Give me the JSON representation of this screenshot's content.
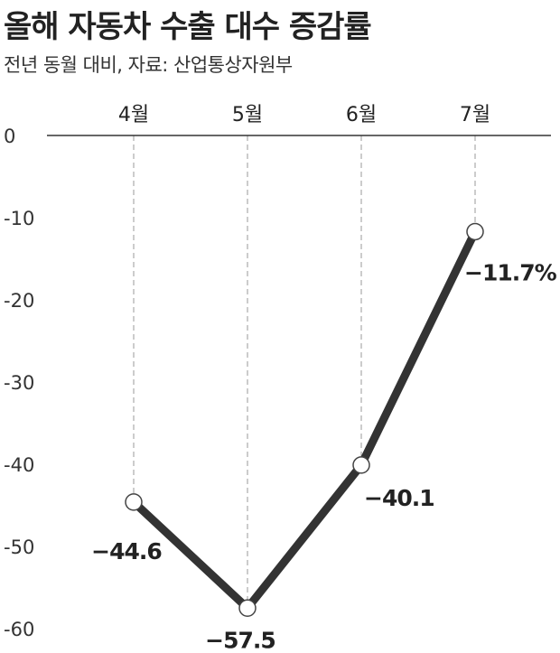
{
  "header": {
    "title": "올해 자동차 수출 대수 증감률",
    "subtitle": "전년 동월 대비, 자료: 산업통상자원부"
  },
  "chart_data": {
    "type": "line",
    "title": "올해 자동차 수출 대수 증감률",
    "subtitle": "전년 동월 대비, 자료: 산업통상자원부",
    "categories": [
      "4월",
      "5월",
      "6월",
      "7월"
    ],
    "series": [
      {
        "values": [
          -44.6,
          -57.5,
          -40.1,
          -11.7
        ]
      }
    ],
    "data_labels": [
      "−44.6",
      "−57.5",
      "−40.1",
      "−11.7%"
    ],
    "yticks": [
      0,
      -10,
      -20,
      -30,
      -40,
      -50,
      -60
    ],
    "ytick_labels": [
      "0",
      "-10",
      "-20",
      "-30",
      "-40",
      "-50",
      "-60"
    ],
    "ylim": [
      -60,
      0
    ],
    "xaxis_position": "top",
    "grid": "vertical dashed",
    "colors": {
      "line": "#333333",
      "marker_fill": "#ffffff",
      "grid": "#b0b0b0"
    }
  }
}
